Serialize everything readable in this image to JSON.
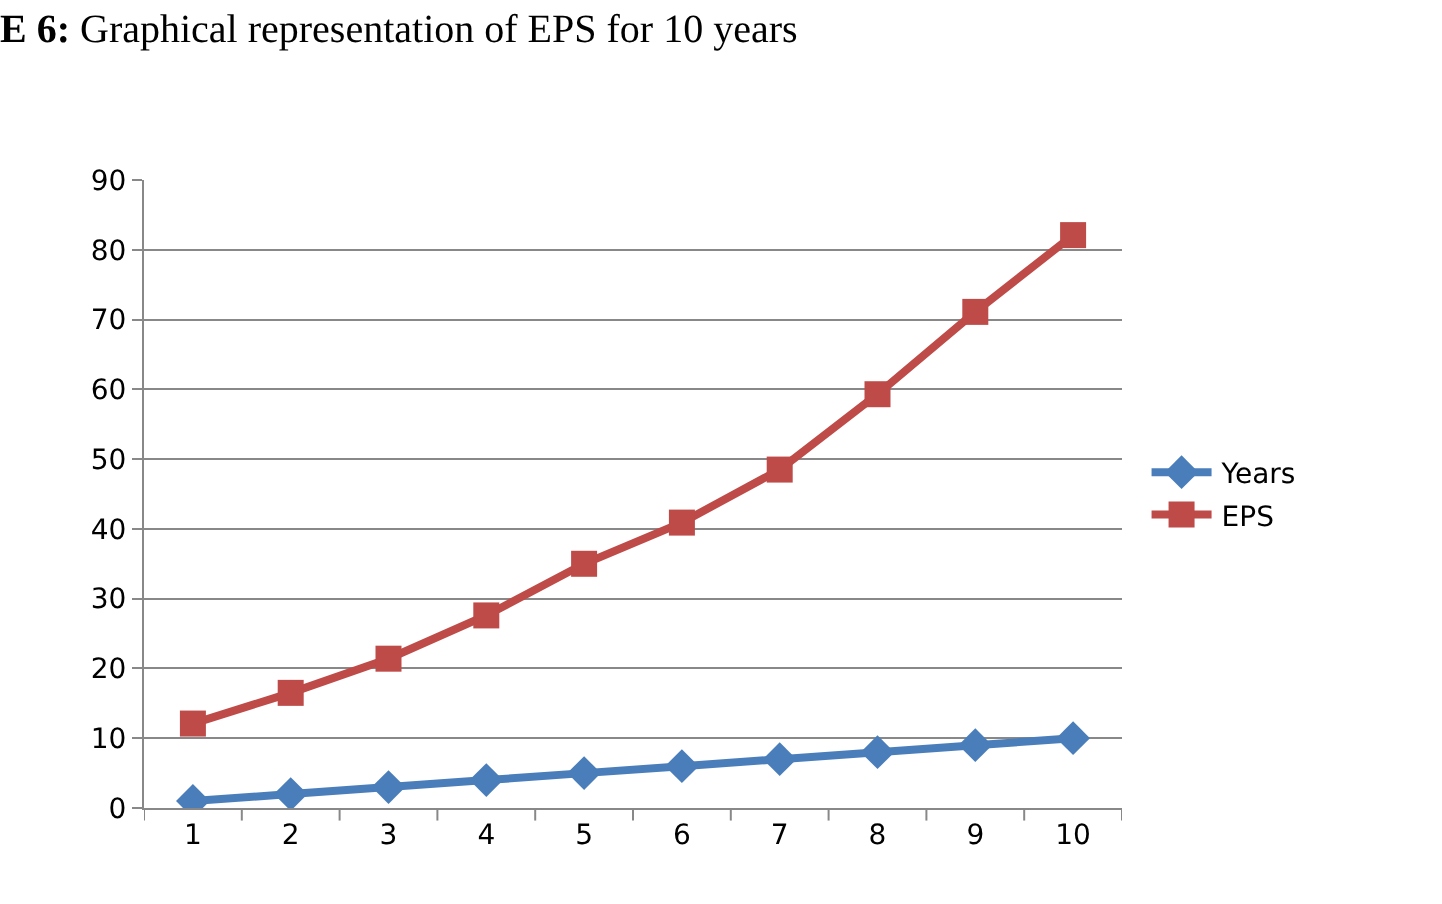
{
  "chart_data": {
    "type": "line",
    "title": "E 6: Graphical representation of EPS for 10 years",
    "categories": [
      "1",
      "2",
      "3",
      "4",
      "5",
      "6",
      "7",
      "8",
      "9",
      "10"
    ],
    "series": [
      {
        "name": "Years",
        "color": "#4a7ebb",
        "marker": "diamond",
        "values": [
          1,
          2,
          3,
          4,
          5,
          6,
          7,
          8,
          9,
          10
        ]
      },
      {
        "name": "EPS",
        "color": "#be4b48",
        "marker": "square",
        "values": [
          12.1,
          16.5,
          21.4,
          27.6,
          35,
          40.9,
          48.5,
          59.3,
          71.1,
          82.1
        ]
      }
    ],
    "ylim": [
      0,
      90
    ],
    "yticks": [
      0,
      10,
      20,
      30,
      40,
      50,
      60,
      70,
      80,
      90
    ],
    "grid": "y",
    "legend": "right"
  }
}
